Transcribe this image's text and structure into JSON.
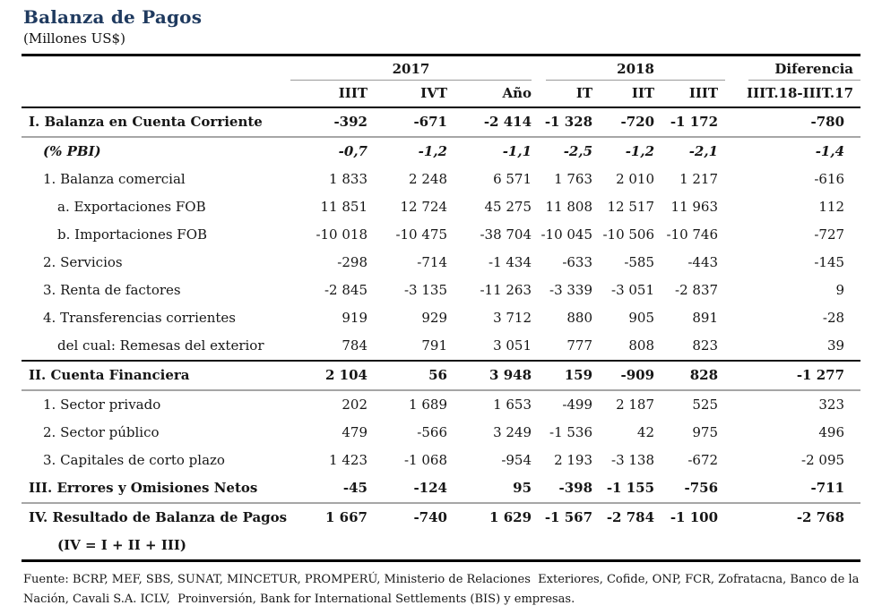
{
  "title": "Balanza de Pagos",
  "subtitle": "(Millones US$)",
  "table": {
    "groups": [
      {
        "label": "2017",
        "span": 3,
        "class": "u2017"
      },
      {
        "label": "2018",
        "span": 3,
        "class": "u2018"
      },
      {
        "label": "Diferencia",
        "span": 1,
        "class": "udif"
      }
    ],
    "columns": [
      "IIIT",
      "IVT",
      "Año",
      "IT",
      "IIT",
      "IIIT",
      "IIIT.18-IIIT.17"
    ],
    "rows": [
      {
        "label": "I. Balanza en Cuenta Corriente",
        "style": "section",
        "indent": 0,
        "rule_below": "gray",
        "values": [
          "-392",
          "-671",
          "-2 414",
          "-1 328",
          "-720",
          "-1 172",
          "-780"
        ]
      },
      {
        "label": "(% PBI)",
        "style": "pct",
        "indent": 1,
        "rule_below": "",
        "values": [
          "-0,7",
          "-1,2",
          "-1,1",
          "-2,5",
          "-1,2",
          "-2,1",
          "-1,4"
        ]
      },
      {
        "label": "1. Balanza comercial",
        "style": "normal",
        "indent": 1,
        "rule_below": "",
        "values": [
          "1 833",
          "2 248",
          "6 571",
          "1 763",
          "2 010",
          "1 217",
          "-616"
        ]
      },
      {
        "label": "a. Exportaciones FOB",
        "style": "normal",
        "indent": 2,
        "rule_below": "",
        "values": [
          "11 851",
          "12 724",
          "45 275",
          "11 808",
          "12 517",
          "11 963",
          "112"
        ]
      },
      {
        "label": "b. Importaciones FOB",
        "style": "normal",
        "indent": 2,
        "rule_below": "",
        "values": [
          "-10 018",
          "-10 475",
          "-38 704",
          "-10 045",
          "-10 506",
          "-10 746",
          "-727"
        ]
      },
      {
        "label": "2. Servicios",
        "style": "normal",
        "indent": 1,
        "rule_below": "",
        "values": [
          "-298",
          "-714",
          "-1 434",
          "-633",
          "-585",
          "-443",
          "-145"
        ]
      },
      {
        "label": "3. Renta de factores",
        "style": "normal",
        "indent": 1,
        "rule_below": "",
        "values": [
          "-2 845",
          "-3 135",
          "-11 263",
          "-3 339",
          "-3 051",
          "-2 837",
          "9"
        ]
      },
      {
        "label": "4. Transferencias corrientes",
        "style": "normal",
        "indent": 1,
        "rule_below": "",
        "values": [
          "919",
          "929",
          "3 712",
          "880",
          "905",
          "891",
          "-28"
        ]
      },
      {
        "label": "del cual: Remesas del exterior",
        "style": "normal",
        "indent": 2,
        "rule_below": "black",
        "values": [
          "784",
          "791",
          "3 051",
          "777",
          "808",
          "823",
          "39"
        ]
      },
      {
        "label": "II. Cuenta Financiera",
        "style": "section",
        "indent": 0,
        "rule_below": "gray",
        "values": [
          "2 104",
          "56",
          "3 948",
          "159",
          "-909",
          "828",
          "-1 277"
        ]
      },
      {
        "label": "1. Sector privado",
        "style": "normal",
        "indent": 1,
        "rule_below": "",
        "values": [
          "202",
          "1 689",
          "1 653",
          "-499",
          "2 187",
          "525",
          "323"
        ]
      },
      {
        "label": "2. Sector público",
        "style": "normal",
        "indent": 1,
        "rule_below": "",
        "values": [
          "479",
          "-566",
          "3 249",
          "-1 536",
          "42",
          "975",
          "496"
        ]
      },
      {
        "label": "3. Capitales de corto plazo",
        "style": "normal",
        "indent": 1,
        "rule_below": "",
        "values": [
          "1 423",
          "-1 068",
          "-954",
          "2 193",
          "-3 138",
          "-672",
          "-2 095"
        ]
      },
      {
        "label": "III. Errores y Omisiones Netos",
        "style": "section",
        "indent": 0,
        "rule_below": "gray",
        "values": [
          "-45",
          "-124",
          "95",
          "-398",
          "-1 155",
          "-756",
          "-711"
        ]
      },
      {
        "label": "IV. Resultado de Balanza de Pagos",
        "style": "section",
        "indent": 0,
        "rule_below": "",
        "values": [
          "1 667",
          "-740",
          "1 629",
          "-1 567",
          "-2 784",
          "-1 100",
          "-2 768"
        ]
      },
      {
        "label": "(IV = I + II + III)",
        "style": "section",
        "indent": 2,
        "rule_below": "",
        "values": [
          "",
          "",
          "",
          "",
          "",
          "",
          ""
        ]
      }
    ]
  },
  "footer": {
    "lines": [
      "Fuente: BCRP, MEF, SBS, SUNAT, MINCETUR, PROMPERÚ, Ministerio de Relaciones  Exteriores, Cofide, ONP, FCR, Zofratacna, Banco de la",
      "Nación, Cavali S.A. ICLV,  Proinversión, Bank for International Settlements (BIS) y empresas."
    ]
  },
  "colors": {
    "title": "#1f3a5f",
    "text": "#161616",
    "rule_black": "#000000",
    "rule_gray": "#a6a6a6"
  }
}
